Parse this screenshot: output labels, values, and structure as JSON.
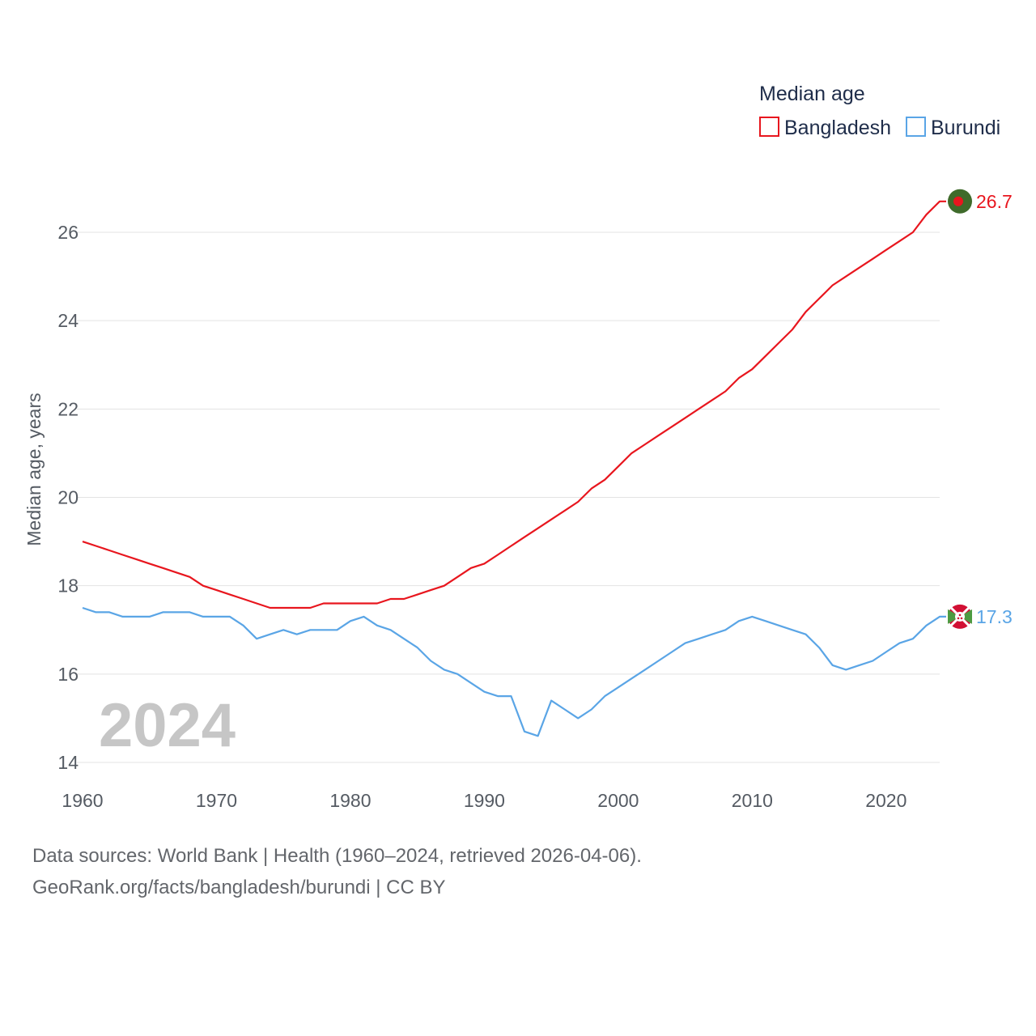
{
  "legend": {
    "title": "Median age"
  },
  "year_watermark": "2024",
  "footer": {
    "line1": "Data sources: World Bank | Health (1960–2024, retrieved 2026-04-06).",
    "line2": "GeoRank.org/facts/bangladesh/burundi | CC BY"
  },
  "colors": {
    "bangladesh": "#e8161e",
    "burundi": "#5aa5e6",
    "grid": "#e3e3e3"
  },
  "chart_data": {
    "type": "line",
    "title": "Median age",
    "xlabel": "",
    "ylabel": "Median age, years",
    "xlim": [
      1960,
      2024
    ],
    "ylim": [
      14,
      27
    ],
    "x_ticks": [
      1960,
      1970,
      1980,
      1990,
      2000,
      2010,
      2020
    ],
    "y_ticks": [
      14,
      16,
      18,
      20,
      22,
      24,
      26
    ],
    "x": [
      1960,
      1961,
      1962,
      1963,
      1964,
      1965,
      1966,
      1967,
      1968,
      1969,
      1970,
      1971,
      1972,
      1973,
      1974,
      1975,
      1976,
      1977,
      1978,
      1979,
      1980,
      1981,
      1982,
      1983,
      1984,
      1985,
      1986,
      1987,
      1988,
      1989,
      1990,
      1991,
      1992,
      1993,
      1994,
      1995,
      1996,
      1997,
      1998,
      1999,
      2000,
      2001,
      2002,
      2003,
      2004,
      2005,
      2006,
      2007,
      2008,
      2009,
      2010,
      2011,
      2012,
      2013,
      2014,
      2015,
      2016,
      2017,
      2018,
      2019,
      2020,
      2021,
      2022,
      2023,
      2024
    ],
    "series": [
      {
        "name": "Bangladesh",
        "color": "#e8161e",
        "end_label": "26.7",
        "values": [
          19.0,
          18.9,
          18.8,
          18.7,
          18.6,
          18.5,
          18.4,
          18.3,
          18.2,
          18.0,
          17.9,
          17.8,
          17.7,
          17.6,
          17.5,
          17.5,
          17.5,
          17.5,
          17.6,
          17.6,
          17.6,
          17.6,
          17.6,
          17.7,
          17.7,
          17.8,
          17.9,
          18.0,
          18.2,
          18.4,
          18.5,
          18.7,
          18.9,
          19.1,
          19.3,
          19.5,
          19.7,
          19.9,
          20.2,
          20.4,
          20.7,
          21.0,
          21.2,
          21.4,
          21.6,
          21.8,
          22.0,
          22.2,
          22.4,
          22.7,
          22.9,
          23.2,
          23.5,
          23.8,
          24.2,
          24.5,
          24.8,
          25.0,
          25.2,
          25.4,
          25.6,
          25.8,
          26.0,
          26.4,
          26.7
        ]
      },
      {
        "name": "Burundi",
        "color": "#5aa5e6",
        "end_label": "17.3",
        "values": [
          17.5,
          17.4,
          17.4,
          17.3,
          17.3,
          17.3,
          17.4,
          17.4,
          17.4,
          17.3,
          17.3,
          17.3,
          17.1,
          16.8,
          16.9,
          17.0,
          16.9,
          17.0,
          17.0,
          17.0,
          17.2,
          17.3,
          17.1,
          17.0,
          16.8,
          16.6,
          16.3,
          16.1,
          16.0,
          15.8,
          15.6,
          15.5,
          15.5,
          14.7,
          14.6,
          15.4,
          15.2,
          15.0,
          15.2,
          15.5,
          15.7,
          15.9,
          16.1,
          16.3,
          16.5,
          16.7,
          16.8,
          16.9,
          17.0,
          17.2,
          17.3,
          17.2,
          17.1,
          17.0,
          16.9,
          16.6,
          16.2,
          16.1,
          16.2,
          16.3,
          16.5,
          16.7,
          16.8,
          17.1,
          17.3
        ]
      }
    ]
  }
}
